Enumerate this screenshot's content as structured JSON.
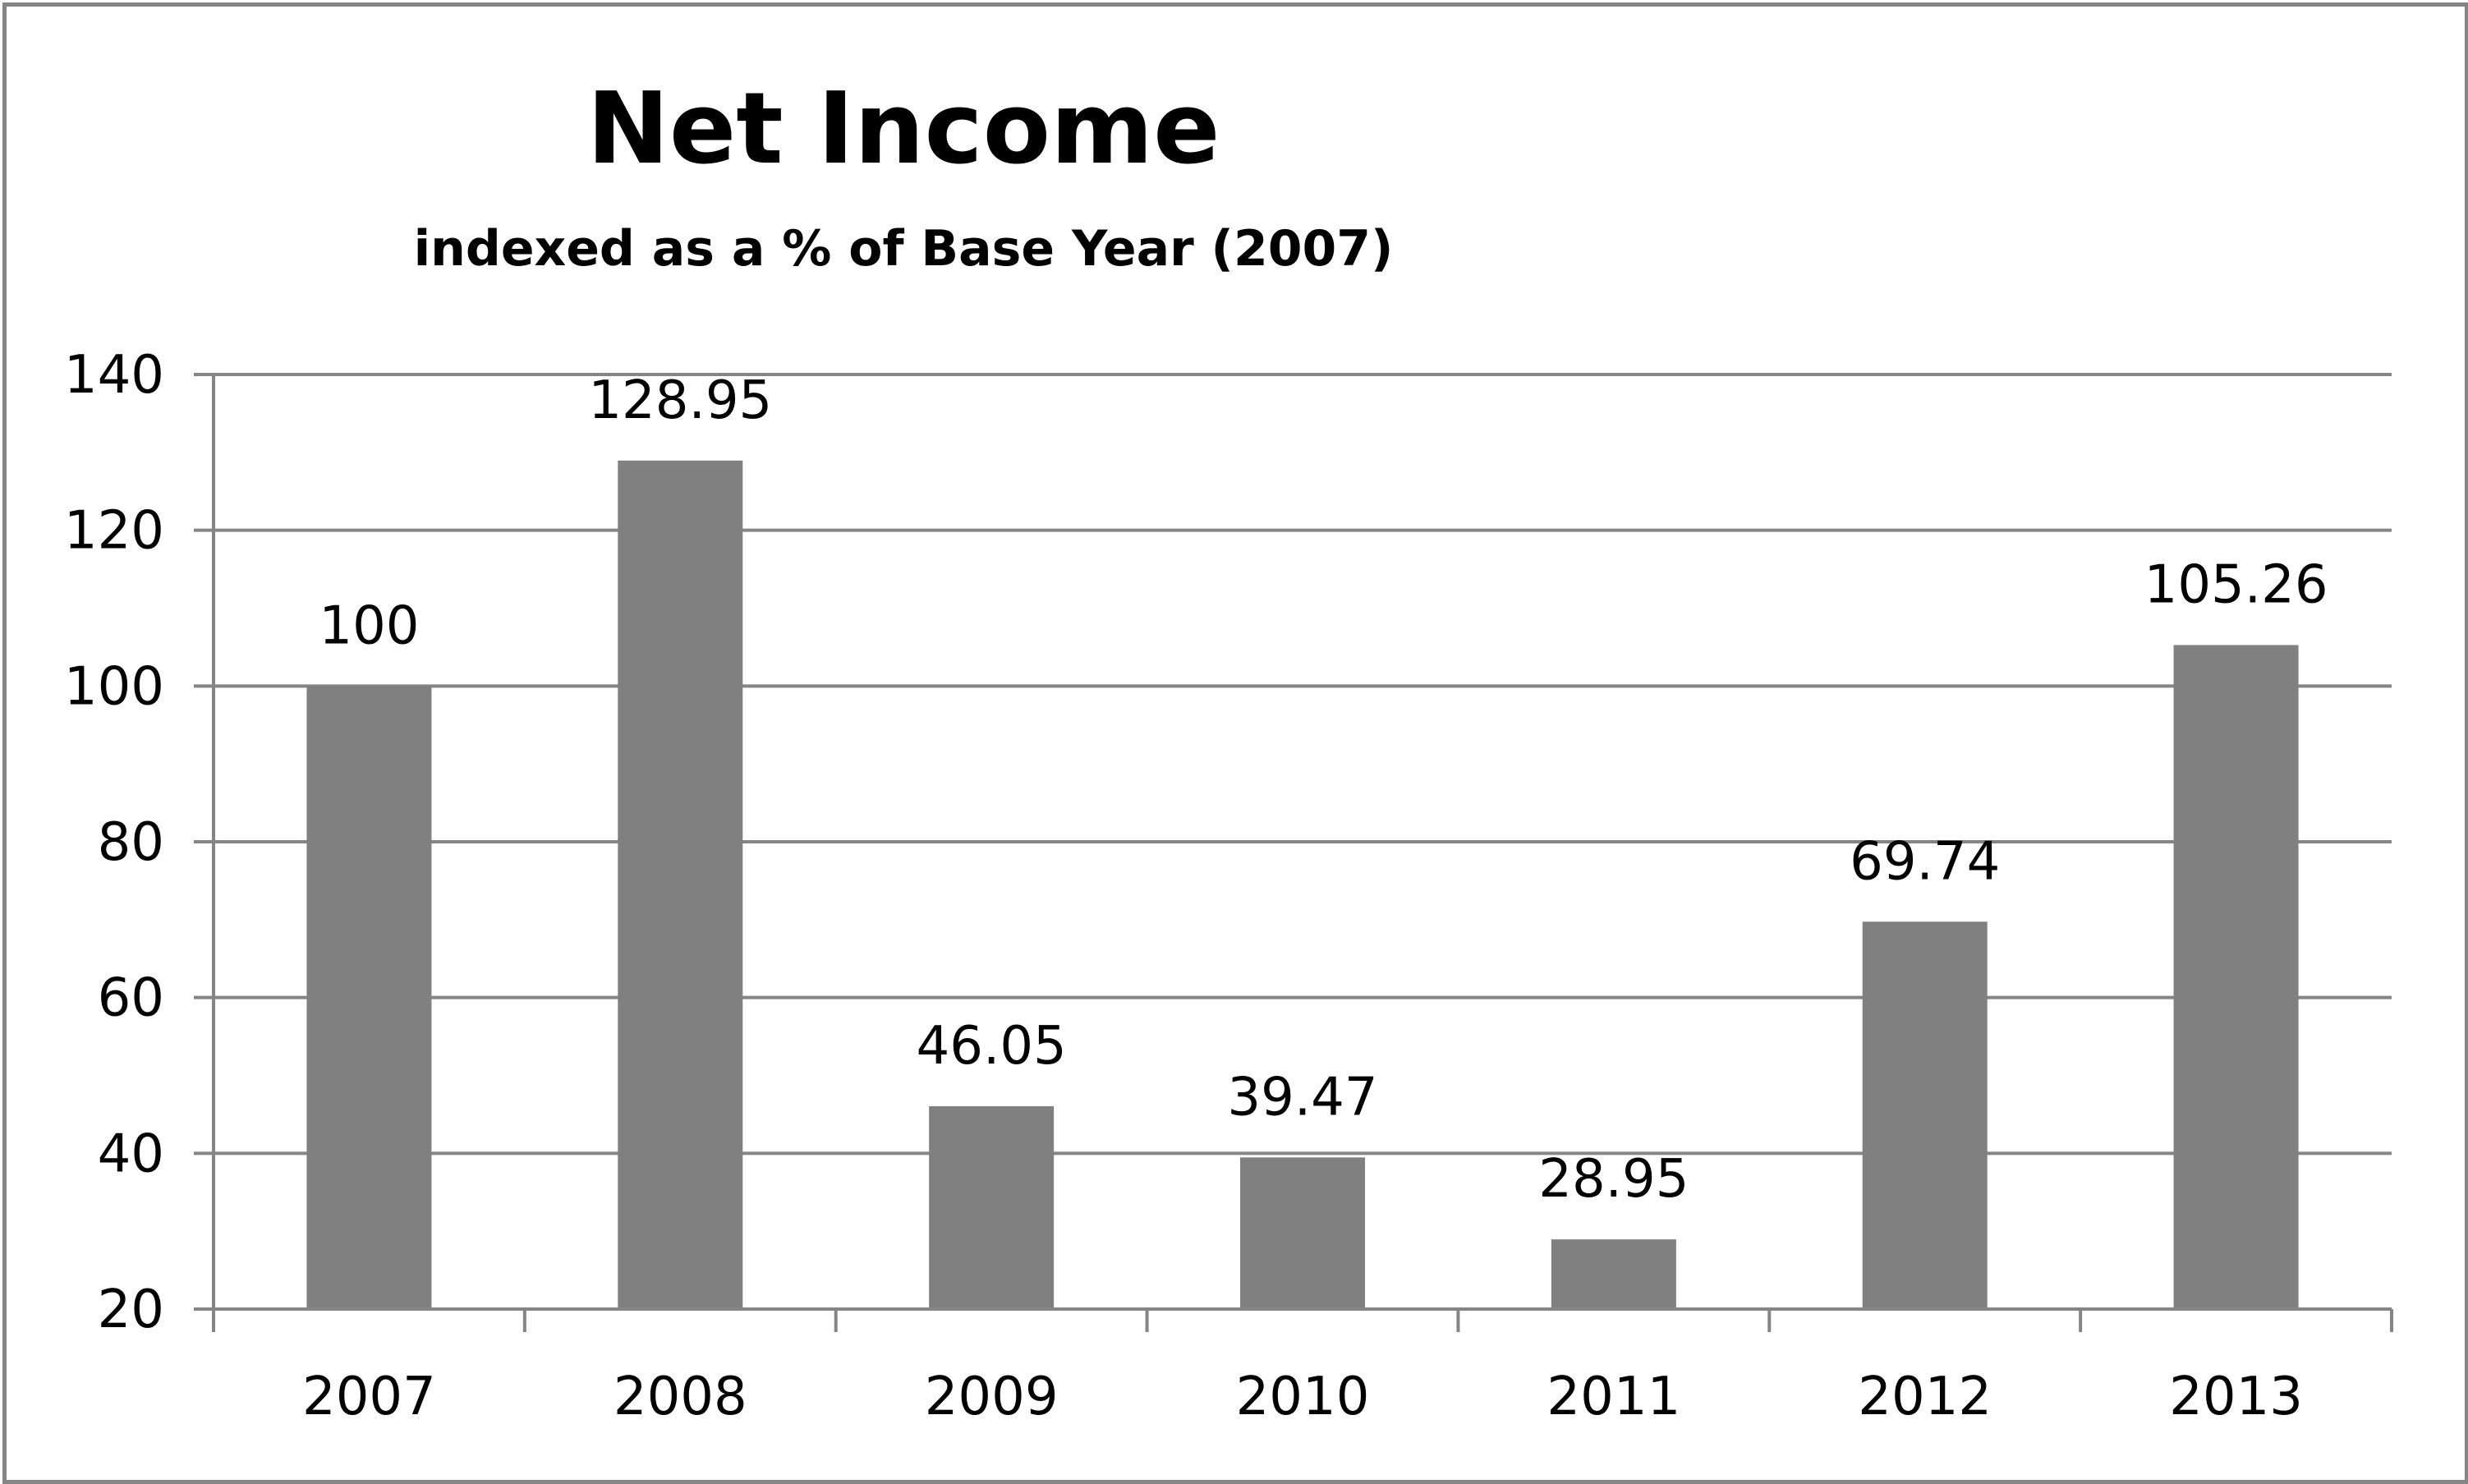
{
  "chart_data": {
    "type": "bar",
    "title": "Net Income",
    "subtitle": "indexed as a % of Base Year (2007)",
    "xlabel": "",
    "ylabel": "",
    "categories": [
      "2007",
      "2008",
      "2009",
      "2010",
      "2011",
      "2012",
      "2013"
    ],
    "values": [
      100,
      128.95,
      46.05,
      39.47,
      28.95,
      69.74,
      105.26
    ],
    "data_labels": [
      "100",
      "128.95",
      "46.05",
      "39.47",
      "28.95",
      "69.74",
      "105.26"
    ],
    "ylim": [
      20,
      140
    ],
    "yticks": [
      20,
      40,
      60,
      80,
      100,
      120,
      140
    ],
    "ytick_labels": [
      "20",
      "40",
      "60",
      "80",
      "100",
      "120",
      "140"
    ],
    "grid": true,
    "legend": "none",
    "colors": {
      "bar": "#808080",
      "grid": "#858585",
      "axis": "#858585",
      "frame": "#858585",
      "text": "#000000"
    }
  }
}
